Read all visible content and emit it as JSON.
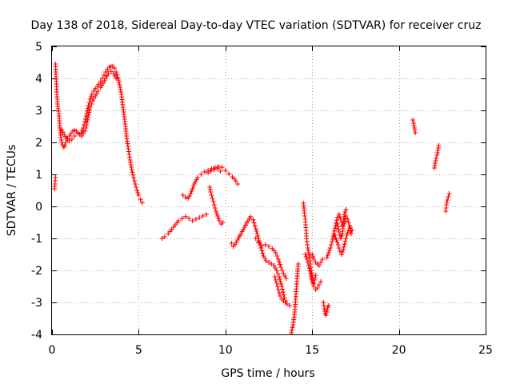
{
  "chart_data": {
    "type": "scatter",
    "title": "Day 138 of 2018, Sidereal Day-to-day VTEC variation (SDTVAR) for receiver cruz",
    "xlabel": "GPS time / hours",
    "ylabel": "SDTVAR / TECUs",
    "xlim": [
      0,
      25
    ],
    "ylim": [
      -4,
      5
    ],
    "xticks": [
      0,
      5,
      10,
      15,
      20,
      25
    ],
    "yticks": [
      -4,
      -3,
      -2,
      -1,
      0,
      1,
      2,
      3,
      4,
      5
    ],
    "xtick_labels": [
      "0",
      "5",
      "10",
      "15",
      "20",
      "25"
    ],
    "ytick_labels": [
      "-4",
      "-3",
      "-2",
      "-1",
      "0",
      "1",
      "2",
      "3",
      "4",
      "5"
    ],
    "grid": true,
    "legend": "none",
    "marker": "+",
    "color": "#ff0000",
    "series": [
      {
        "segments": [
          [
            [
              0.15,
              0.55
            ],
            [
              0.17,
              0.7
            ],
            [
              0.2,
              0.9
            ]
          ],
          [
            [
              0.2,
              4.45
            ],
            [
              0.22,
              4.2
            ],
            [
              0.25,
              3.9
            ],
            [
              0.28,
              3.5
            ],
            [
              0.32,
              3.2
            ],
            [
              0.36,
              3.05
            ],
            [
              0.4,
              2.9
            ],
            [
              0.44,
              2.6
            ],
            [
              0.48,
              2.3
            ],
            [
              0.52,
              2.15
            ],
            [
              0.56,
              2.0
            ],
            [
              0.62,
              1.92
            ],
            [
              0.68,
              1.85
            ],
            [
              0.74,
              1.9
            ],
            [
              0.8,
              2.0
            ],
            [
              0.9,
              2.1
            ],
            [
              1.0,
              2.2
            ],
            [
              1.1,
              2.28
            ],
            [
              1.2,
              2.35
            ],
            [
              1.3,
              2.38
            ],
            [
              1.4,
              2.35
            ],
            [
              1.5,
              2.3
            ],
            [
              1.6,
              2.25
            ],
            [
              1.7,
              2.3
            ],
            [
              1.8,
              2.45
            ],
            [
              1.9,
              2.65
            ],
            [
              2.0,
              2.9
            ],
            [
              2.1,
              3.15
            ],
            [
              2.2,
              3.35
            ],
            [
              2.3,
              3.5
            ],
            [
              2.4,
              3.6
            ],
            [
              2.5,
              3.68
            ],
            [
              2.6,
              3.75
            ],
            [
              2.7,
              3.82
            ],
            [
              2.8,
              3.9
            ],
            [
              2.9,
              4.0
            ],
            [
              3.0,
              4.1
            ],
            [
              3.1,
              4.2
            ],
            [
              3.2,
              4.28
            ],
            [
              3.3,
              4.35
            ],
            [
              3.4,
              4.38
            ],
            [
              3.5,
              4.38
            ],
            [
              3.6,
              4.32
            ],
            [
              3.7,
              4.2
            ],
            [
              3.8,
              4.02
            ],
            [
              3.9,
              3.8
            ],
            [
              4.0,
              3.5
            ],
            [
              4.1,
              3.1
            ],
            [
              4.2,
              2.65
            ],
            [
              4.3,
              2.2
            ],
            [
              4.4,
              1.8
            ],
            [
              4.5,
              1.45
            ],
            [
              4.6,
              1.15
            ],
            [
              4.7,
              0.9
            ],
            [
              4.8,
              0.7
            ],
            [
              4.9,
              0.5
            ],
            [
              5.0,
              0.35
            ],
            [
              5.1,
              0.22
            ],
            [
              5.2,
              0.12
            ]
          ],
          [
            [
              0.55,
              2.4
            ],
            [
              0.7,
              2.25
            ],
            [
              0.85,
              2.12
            ],
            [
              1.0,
              2.05
            ],
            [
              1.15,
              2.1
            ],
            [
              1.3,
              2.2
            ],
            [
              1.5,
              2.28
            ],
            [
              1.7,
              2.2
            ],
            [
              1.9,
              2.35
            ],
            [
              2.0,
              2.55
            ],
            [
              2.1,
              2.85
            ],
            [
              2.2,
              3.1
            ],
            [
              2.35,
              3.3
            ],
            [
              2.5,
              3.45
            ],
            [
              2.65,
              3.6
            ],
            [
              2.8,
              3.72
            ],
            [
              2.95,
              3.85
            ],
            [
              3.1,
              4.0
            ],
            [
              3.25,
              4.15
            ],
            [
              3.4,
              4.22
            ],
            [
              3.55,
              4.15
            ],
            [
              3.7,
              4.0
            ]
          ],
          [
            [
              6.35,
              -1.0
            ],
            [
              6.5,
              -0.95
            ],
            [
              6.7,
              -0.85
            ],
            [
              6.9,
              -0.72
            ],
            [
              7.1,
              -0.58
            ],
            [
              7.3,
              -0.45
            ],
            [
              7.5,
              -0.38
            ],
            [
              7.7,
              -0.32
            ],
            [
              7.9,
              -0.38
            ],
            [
              8.1,
              -0.45
            ],
            [
              8.3,
              -0.4
            ],
            [
              8.5,
              -0.35
            ],
            [
              8.7,
              -0.3
            ],
            [
              8.9,
              -0.25
            ]
          ],
          [
            [
              7.55,
              0.35
            ],
            [
              7.7,
              0.28
            ],
            [
              7.85,
              0.25
            ],
            [
              8.0,
              0.4
            ],
            [
              8.2,
              0.7
            ],
            [
              8.4,
              0.9
            ],
            [
              8.6,
              1.0
            ],
            [
              8.8,
              1.08
            ],
            [
              9.0,
              1.12
            ],
            [
              9.2,
              1.18
            ],
            [
              9.4,
              1.22
            ],
            [
              9.6,
              1.25
            ],
            [
              9.8,
              1.22
            ],
            [
              10.0,
              1.12
            ],
            [
              10.2,
              1.02
            ],
            [
              10.4,
              0.92
            ],
            [
              10.6,
              0.8
            ],
            [
              10.7,
              0.7
            ]
          ],
          [
            [
              9.0,
              1.05
            ],
            [
              9.15,
              1.1
            ],
            [
              9.35,
              1.15
            ],
            [
              9.55,
              1.18
            ],
            [
              9.7,
              1.1
            ]
          ],
          [
            [
              9.1,
              0.6
            ],
            [
              9.15,
              0.45
            ],
            [
              9.25,
              0.25
            ],
            [
              9.35,
              0.05
            ],
            [
              9.45,
              -0.15
            ],
            [
              9.55,
              -0.3
            ],
            [
              9.65,
              -0.45
            ],
            [
              9.75,
              -0.55
            ],
            [
              9.85,
              -0.5
            ]
          ],
          [
            [
              10.35,
              -1.15
            ],
            [
              10.45,
              -1.25
            ],
            [
              10.55,
              -1.2
            ],
            [
              10.7,
              -1.05
            ],
            [
              10.9,
              -0.85
            ],
            [
              11.1,
              -0.65
            ],
            [
              11.3,
              -0.45
            ],
            [
              11.45,
              -0.32
            ],
            [
              11.6,
              -0.42
            ],
            [
              11.75,
              -0.7
            ],
            [
              11.9,
              -1.0
            ],
            [
              12.05,
              -1.3
            ],
            [
              12.2,
              -1.55
            ],
            [
              12.35,
              -1.7
            ],
            [
              12.5,
              -1.75
            ],
            [
              12.65,
              -1.8
            ],
            [
              12.8,
              -1.85
            ],
            [
              12.95,
              -2.0
            ],
            [
              13.1,
              -2.2
            ],
            [
              13.25,
              -2.5
            ],
            [
              13.4,
              -2.85
            ],
            [
              13.55,
              -3.05
            ],
            [
              13.7,
              -3.1
            ]
          ],
          [
            [
              11.75,
              -1.0
            ],
            [
              11.9,
              -1.12
            ],
            [
              12.1,
              -1.22
            ],
            [
              12.3,
              -1.2
            ],
            [
              12.5,
              -1.25
            ],
            [
              12.7,
              -1.32
            ],
            [
              12.9,
              -1.45
            ],
            [
              13.05,
              -1.65
            ],
            [
              13.2,
              -1.9
            ],
            [
              13.35,
              -2.1
            ],
            [
              13.5,
              -2.25
            ]
          ],
          [
            [
              12.85,
              -2.2
            ],
            [
              12.95,
              -2.4
            ],
            [
              13.05,
              -2.6
            ],
            [
              13.15,
              -2.8
            ],
            [
              13.25,
              -2.9
            ],
            [
              13.35,
              -2.95
            ],
            [
              13.45,
              -3.0
            ]
          ],
          [
            [
              13.8,
              -3.95
            ],
            [
              13.9,
              -3.7
            ],
            [
              14.0,
              -3.3
            ],
            [
              14.05,
              -2.9
            ],
            [
              14.1,
              -2.5
            ],
            [
              14.15,
              -2.1
            ],
            [
              14.2,
              -1.8
            ]
          ],
          [
            [
              14.5,
              0.1
            ],
            [
              14.55,
              -0.2
            ],
            [
              14.6,
              -0.4
            ],
            [
              14.65,
              -0.75
            ],
            [
              14.7,
              -1.1
            ],
            [
              14.75,
              -1.3
            ],
            [
              14.8,
              -1.45
            ],
            [
              14.85,
              -1.6
            ],
            [
              14.9,
              -1.8
            ],
            [
              14.95,
              -2.0
            ],
            [
              15.0,
              -2.15
            ],
            [
              15.05,
              -2.3
            ],
            [
              15.1,
              -2.4
            ],
            [
              15.15,
              -2.3
            ],
            [
              15.2,
              -2.15
            ]
          ],
          [
            [
              14.6,
              -1.5
            ],
            [
              14.7,
              -1.65
            ],
            [
              14.8,
              -1.85
            ],
            [
              14.9,
              -2.1
            ],
            [
              15.0,
              -2.35
            ],
            [
              15.1,
              -2.5
            ],
            [
              15.2,
              -2.6
            ],
            [
              15.3,
              -2.55
            ],
            [
              15.4,
              -2.45
            ],
            [
              15.5,
              -2.35
            ]
          ],
          [
            [
              15.0,
              -1.5
            ],
            [
              15.1,
              -1.65
            ],
            [
              15.2,
              -1.75
            ],
            [
              15.3,
              -1.8
            ],
            [
              15.4,
              -1.85
            ],
            [
              15.5,
              -1.75
            ],
            [
              15.6,
              -1.65
            ]
          ],
          [
            [
              15.65,
              -3.0
            ],
            [
              15.7,
              -3.2
            ],
            [
              15.75,
              -3.35
            ],
            [
              15.8,
              -3.4
            ],
            [
              15.85,
              -3.3
            ],
            [
              15.9,
              -3.15
            ],
            [
              15.95,
              -3.1
            ]
          ],
          [
            [
              15.85,
              -1.6
            ],
            [
              15.95,
              -1.45
            ],
            [
              16.05,
              -1.3
            ],
            [
              16.15,
              -1.1
            ],
            [
              16.25,
              -0.85
            ],
            [
              16.35,
              -0.6
            ],
            [
              16.45,
              -0.35
            ],
            [
              16.55,
              -0.25
            ],
            [
              16.65,
              -0.4
            ],
            [
              16.75,
              -0.6
            ],
            [
              16.85,
              -0.55
            ],
            [
              16.95,
              -0.3
            ],
            [
              17.05,
              -0.4
            ],
            [
              17.15,
              -0.6
            ],
            [
              17.25,
              -0.85
            ]
          ],
          [
            [
              16.3,
              -0.9
            ],
            [
              16.4,
              -1.05
            ],
            [
              16.5,
              -1.2
            ],
            [
              16.6,
              -1.4
            ],
            [
              16.7,
              -1.5
            ],
            [
              16.8,
              -1.35
            ],
            [
              16.9,
              -1.1
            ],
            [
              17.0,
              -0.9
            ],
            [
              17.1,
              -0.75
            ],
            [
              17.2,
              -0.65
            ],
            [
              17.3,
              -0.75
            ]
          ],
          [
            [
              16.45,
              -0.55
            ],
            [
              16.55,
              -0.8
            ],
            [
              16.65,
              -1.0
            ],
            [
              16.75,
              -0.85
            ],
            [
              16.85,
              -0.25
            ],
            [
              16.95,
              -0.1
            ]
          ],
          [
            [
              20.8,
              2.7
            ],
            [
              20.85,
              2.6
            ],
            [
              20.9,
              2.45
            ],
            [
              20.95,
              2.3
            ]
          ],
          [
            [
              22.05,
              1.2
            ],
            [
              22.1,
              1.35
            ],
            [
              22.15,
              1.5
            ],
            [
              22.2,
              1.6
            ],
            [
              22.25,
              1.75
            ],
            [
              22.3,
              1.9
            ]
          ],
          [
            [
              22.7,
              -0.15
            ],
            [
              22.75,
              0.05
            ],
            [
              22.8,
              0.2
            ],
            [
              22.85,
              0.3
            ],
            [
              22.9,
              0.4
            ]
          ]
        ]
      }
    ]
  }
}
